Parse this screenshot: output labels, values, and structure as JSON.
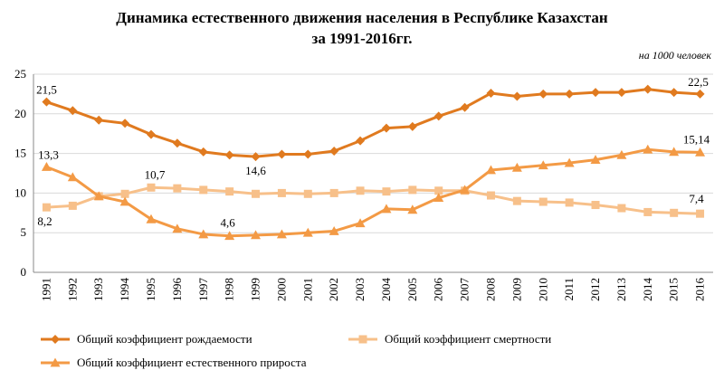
{
  "chart_data": {
    "type": "line",
    "title": "Динамика естественного движения населения в Республике Казахстан",
    "title_line2": "за 1991-2016гг.",
    "unit_note": "на 1000 человек",
    "xlabel": "",
    "ylabel": "",
    "ylim": [
      0,
      25
    ],
    "yticks": [
      0,
      5,
      10,
      15,
      20,
      25
    ],
    "grid": true,
    "legend_position": "bottom",
    "categories": [
      "1991",
      "1992",
      "1993",
      "1994",
      "1995",
      "1996",
      "1997",
      "1998",
      "1999",
      "2000",
      "2001",
      "2002",
      "2003",
      "2004",
      "2005",
      "2006",
      "2007",
      "2008",
      "2009",
      "2010",
      "2011",
      "2012",
      "2013",
      "2014",
      "2015",
      "2016"
    ],
    "series": [
      {
        "name": "Общий коэффициент рождаемости",
        "color": "#e07a1f",
        "marker": "diamond",
        "values": [
          21.5,
          20.4,
          19.2,
          18.8,
          17.4,
          16.3,
          15.2,
          14.8,
          14.6,
          14.9,
          14.9,
          15.3,
          16.6,
          18.2,
          18.4,
          19.7,
          20.8,
          22.6,
          22.2,
          22.5,
          22.5,
          22.7,
          22.7,
          23.1,
          22.7,
          22.5
        ]
      },
      {
        "name": "Общий коэффициент смертности",
        "color": "#f7c08a",
        "marker": "square",
        "values": [
          8.2,
          8.4,
          9.6,
          9.9,
          10.7,
          10.6,
          10.4,
          10.2,
          9.9,
          10.0,
          9.9,
          10.0,
          10.3,
          10.2,
          10.4,
          10.3,
          10.3,
          9.7,
          9.0,
          8.9,
          8.8,
          8.5,
          8.1,
          7.6,
          7.5,
          7.4
        ]
      },
      {
        "name": "Общий коэффициент естественного прироста",
        "color": "#f39a45",
        "marker": "triangle",
        "values": [
          13.3,
          12.0,
          9.6,
          8.9,
          6.7,
          5.5,
          4.8,
          4.6,
          4.7,
          4.8,
          5.0,
          5.2,
          6.2,
          8.0,
          7.9,
          9.4,
          10.4,
          12.9,
          13.2,
          13.5,
          13.8,
          14.2,
          14.8,
          15.5,
          15.2,
          15.14
        ]
      }
    ],
    "data_labels": [
      {
        "series": 0,
        "index": 0,
        "text": "21,5"
      },
      {
        "series": 0,
        "index": 8,
        "text": "14,6"
      },
      {
        "series": 0,
        "index": 25,
        "text": "22,5"
      },
      {
        "series": 1,
        "index": 0,
        "text": "8,2"
      },
      {
        "series": 1,
        "index": 4,
        "text": "10,7"
      },
      {
        "series": 1,
        "index": 25,
        "text": "7,4"
      },
      {
        "series": 2,
        "index": 0,
        "text": "13,3"
      },
      {
        "series": 2,
        "index": 7,
        "text": "4,6"
      },
      {
        "series": 2,
        "index": 25,
        "text": "15,14"
      }
    ]
  }
}
